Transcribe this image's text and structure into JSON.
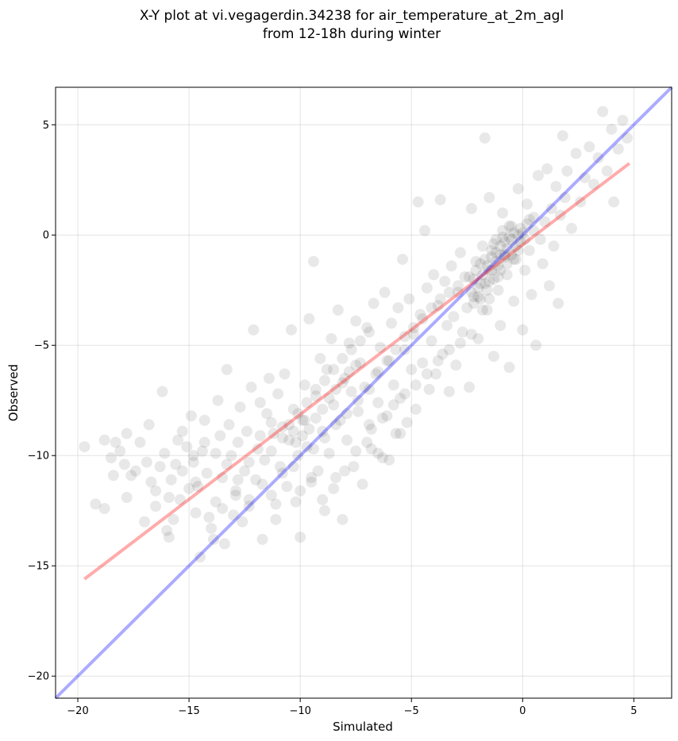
{
  "chart_data": {
    "type": "scatter",
    "title_lines": [
      "X-Y plot at vi.vegagerdin.34238 for air_temperature_at_2m_agl",
      "from 12-18h during winter"
    ],
    "xlabel": "Simulated",
    "ylabel": "Observed",
    "xlim": [
      -21.0,
      6.7
    ],
    "ylim": [
      -21.0,
      6.7
    ],
    "xticks": [
      -20,
      -15,
      -10,
      -5,
      0,
      5
    ],
    "yticks": [
      -20,
      -15,
      -10,
      -5,
      0,
      5
    ],
    "xtick_labels": [
      "−20",
      "−15",
      "−10",
      "−5",
      "0",
      "5"
    ],
    "ytick_labels": [
      "−20",
      "−15",
      "−10",
      "−5",
      "0",
      "5"
    ],
    "grid": true,
    "point_color": "#000000",
    "point_opacity": 0.09,
    "identity_line": {
      "color": "#0000ff",
      "opacity": 0.33,
      "x": [
        -21.0,
        6.7
      ],
      "y": [
        -21.0,
        6.7
      ]
    },
    "regression_line": {
      "color": "#ff0000",
      "opacity": 0.33,
      "x": [
        -19.7,
        4.8
      ],
      "y": [
        -15.6,
        3.25
      ]
    },
    "points": [
      [
        -19.7,
        -9.6
      ],
      [
        -19.2,
        -12.2
      ],
      [
        -18.8,
        -12.4
      ],
      [
        -18.8,
        -9.3
      ],
      [
        -18.5,
        -10.1
      ],
      [
        -18.4,
        -10.9
      ],
      [
        -18.3,
        -9.4
      ],
      [
        -18.1,
        -9.8
      ],
      [
        -17.9,
        -10.4
      ],
      [
        -17.8,
        -11.9
      ],
      [
        -17.8,
        -9.0
      ],
      [
        -17.6,
        -10.9
      ],
      [
        -17.4,
        -10.7
      ],
      [
        -17.2,
        -9.4
      ],
      [
        -17.0,
        -13.0
      ],
      [
        -16.9,
        -10.3
      ],
      [
        -16.8,
        -8.6
      ],
      [
        -16.7,
        -11.2
      ],
      [
        -16.5,
        -12.3
      ],
      [
        -16.3,
        -10.5
      ],
      [
        -16.2,
        -7.1
      ],
      [
        -16.1,
        -9.9
      ],
      [
        -16.0,
        -13.4
      ],
      [
        -15.9,
        -13.7
      ],
      [
        -15.8,
        -11.1
      ],
      [
        -15.7,
        -12.9
      ],
      [
        -15.6,
        -10.4
      ],
      [
        -15.5,
        -9.3
      ],
      [
        -15.4,
        -12.0
      ],
      [
        -15.3,
        -8.9
      ],
      [
        -15.1,
        -9.6
      ],
      [
        -15.0,
        -11.5
      ],
      [
        -14.9,
        -8.2
      ],
      [
        -14.8,
        -10.3
      ],
      [
        -14.7,
        -12.6
      ],
      [
        -14.6,
        -11.4
      ],
      [
        -14.5,
        -14.6
      ],
      [
        -14.4,
        -9.8
      ],
      [
        -14.3,
        -8.4
      ],
      [
        -14.2,
        -10.8
      ],
      [
        -14.0,
        -13.3
      ],
      [
        -13.9,
        -13.8
      ],
      [
        -13.8,
        -12.1
      ],
      [
        -13.7,
        -7.5
      ],
      [
        -13.6,
        -9.1
      ],
      [
        -13.5,
        -11.0
      ],
      [
        -13.4,
        -14.0
      ],
      [
        -13.3,
        -6.1
      ],
      [
        -13.2,
        -8.6
      ],
      [
        -13.1,
        -10.0
      ],
      [
        -13.0,
        -12.7
      ],
      [
        -12.9,
        -11.6
      ],
      [
        -12.8,
        -9.4
      ],
      [
        -12.7,
        -7.8
      ],
      [
        -12.6,
        -13.0
      ],
      [
        -12.5,
        -10.7
      ],
      [
        -12.4,
        -8.9
      ],
      [
        -12.3,
        -12.3
      ],
      [
        -12.2,
        -6.9
      ],
      [
        -12.1,
        -4.3
      ],
      [
        -12.0,
        -11.1
      ],
      [
        -11.9,
        -9.7
      ],
      [
        -11.8,
        -7.6
      ],
      [
        -11.7,
        -13.8
      ],
      [
        -11.6,
        -10.2
      ],
      [
        -11.5,
        -8.1
      ],
      [
        -11.4,
        -6.5
      ],
      [
        -11.3,
        -11.8
      ],
      [
        -11.2,
        -9.0
      ],
      [
        -11.1,
        -12.9
      ],
      [
        -11.0,
        -7.2
      ],
      [
        -10.9,
        -10.5
      ],
      [
        -10.8,
        -8.7
      ],
      [
        -10.7,
        -6.3
      ],
      [
        -10.6,
        -11.4
      ],
      [
        -10.5,
        -9.3
      ],
      [
        -10.4,
        -4.3
      ],
      [
        -10.3,
        -7.9
      ],
      [
        -10.2,
        -12.1
      ],
      [
        -10.1,
        -10.0
      ],
      [
        -10.0,
        -13.7
      ],
      [
        -9.9,
        -8.4
      ],
      [
        -9.8,
        -6.8
      ],
      [
        -9.7,
        -9.6
      ],
      [
        -9.6,
        -3.8
      ],
      [
        -9.5,
        -11.2
      ],
      [
        -9.4,
        -1.2
      ],
      [
        -9.3,
        -7.3
      ],
      [
        -9.2,
        -10.7
      ],
      [
        -9.1,
        -5.6
      ],
      [
        -9.0,
        -8.9
      ],
      [
        -8.9,
        -12.5
      ],
      [
        -8.8,
        -6.1
      ],
      [
        -8.7,
        -9.9
      ],
      [
        -8.6,
        -4.7
      ],
      [
        -8.5,
        -7.7
      ],
      [
        -8.4,
        -11.0
      ],
      [
        -8.3,
        -3.4
      ],
      [
        -8.2,
        -8.4
      ],
      [
        -8.1,
        -12.9
      ],
      [
        -8.0,
        -6.5
      ],
      [
        -7.9,
        -9.3
      ],
      [
        -7.8,
        -4.9
      ],
      [
        -7.7,
        -7.1
      ],
      [
        -7.6,
        -10.5
      ],
      [
        -7.5,
        -3.9
      ],
      [
        -7.4,
        -8.0
      ],
      [
        -7.3,
        -5.8
      ],
      [
        -7.2,
        -11.3
      ],
      [
        -7.1,
        -6.9
      ],
      [
        -7.0,
        -4.2
      ],
      [
        -6.9,
        -8.6
      ],
      [
        -6.8,
        -9.7
      ],
      [
        -6.7,
        -3.1
      ],
      [
        -6.6,
        -6.3
      ],
      [
        -6.5,
        -7.6
      ],
      [
        -6.4,
        -5.1
      ],
      [
        -6.3,
        -10.1
      ],
      [
        -6.2,
        -2.6
      ],
      [
        -6.1,
        -8.2
      ],
      [
        -6.0,
        -5.7
      ],
      [
        -5.9,
        -4.0
      ],
      [
        -5.8,
        -6.8
      ],
      [
        -5.7,
        -9.0
      ],
      [
        -5.6,
        -3.3
      ],
      [
        -5.5,
        -7.4
      ],
      [
        -5.4,
        -1.1
      ],
      [
        -5.3,
        -5.2
      ],
      [
        -5.2,
        -8.5
      ],
      [
        -5.1,
        -2.9
      ],
      [
        -5.0,
        -6.1
      ],
      [
        -4.9,
        -4.5
      ],
      [
        -4.8,
        -7.9
      ],
      [
        -4.7,
        1.5
      ],
      [
        -4.6,
        -3.6
      ],
      [
        -4.5,
        -5.8
      ],
      [
        -4.4,
        0.2
      ],
      [
        -4.3,
        -2.4
      ],
      [
        -4.2,
        -7.0
      ],
      [
        -4.1,
        -4.8
      ],
      [
        -4.0,
        -1.8
      ],
      [
        -3.9,
        -6.3
      ],
      [
        -3.8,
        -3.2
      ],
      [
        -3.7,
        1.6
      ],
      [
        -3.6,
        -5.4
      ],
      [
        -3.5,
        -2.1
      ],
      [
        -3.4,
        -4.1
      ],
      [
        -3.3,
        -7.1
      ],
      [
        -3.2,
        -1.4
      ],
      [
        -3.1,
        -3.7
      ],
      [
        -3.0,
        -5.9
      ],
      [
        -2.9,
        -2.6
      ],
      [
        -2.8,
        -0.8
      ],
      [
        -2.7,
        -4.4
      ],
      [
        -2.6,
        -1.9
      ],
      [
        -2.5,
        -3.3
      ],
      [
        -2.4,
        -6.9
      ],
      [
        -2.3,
        1.2
      ],
      [
        -2.2,
        -2.8
      ],
      [
        -2.1,
        -1.2
      ],
      [
        -2.0,
        -4.7
      ],
      [
        -1.9,
        -2.2
      ],
      [
        -1.8,
        -0.5
      ],
      [
        -1.7,
        4.4
      ],
      [
        -1.6,
        -3.4
      ],
      [
        -1.5,
        1.7
      ],
      [
        -1.4,
        -1.6
      ],
      [
        -1.3,
        -5.5
      ],
      [
        -1.2,
        -0.2
      ],
      [
        -1.1,
        -2.5
      ],
      [
        -1.0,
        -4.1
      ],
      [
        -0.9,
        1.0
      ],
      [
        -0.8,
        -0.9
      ],
      [
        -0.7,
        -1.8
      ],
      [
        -0.6,
        -6.0
      ],
      [
        -0.5,
        0.4
      ],
      [
        -0.4,
        -3.0
      ],
      [
        -0.3,
        -1.1
      ],
      [
        -0.2,
        2.1
      ],
      [
        -0.1,
        -0.3
      ],
      [
        0.0,
        -4.3
      ],
      [
        0.1,
        -1.6
      ],
      [
        0.2,
        1.4
      ],
      [
        0.3,
        -0.7
      ],
      [
        0.4,
        -2.7
      ],
      [
        0.5,
        0.8
      ],
      [
        0.6,
        -5.0
      ],
      [
        0.7,
        2.7
      ],
      [
        0.8,
        -0.2
      ],
      [
        0.9,
        -1.3
      ],
      [
        1.0,
        0.6
      ],
      [
        1.1,
        3.0
      ],
      [
        1.2,
        -2.3
      ],
      [
        1.3,
        1.2
      ],
      [
        1.4,
        -0.5
      ],
      [
        1.5,
        2.2
      ],
      [
        1.6,
        -3.1
      ],
      [
        1.7,
        0.9
      ],
      [
        1.8,
        4.5
      ],
      [
        1.9,
        1.7
      ],
      [
        2.0,
        2.9
      ],
      [
        2.2,
        0.3
      ],
      [
        2.4,
        3.7
      ],
      [
        2.6,
        1.5
      ],
      [
        2.8,
        2.6
      ],
      [
        3.0,
        4.0
      ],
      [
        3.2,
        2.3
      ],
      [
        3.4,
        3.5
      ],
      [
        3.6,
        5.6
      ],
      [
        3.8,
        2.9
      ],
      [
        4.0,
        4.8
      ],
      [
        4.1,
        1.5
      ],
      [
        4.3,
        3.9
      ],
      [
        4.5,
        5.2
      ],
      [
        4.7,
        4.4
      ],
      [
        -2.2,
        -2.0
      ],
      [
        -2.0,
        -2.4
      ],
      [
        -1.8,
        -1.8
      ],
      [
        -1.6,
        -1.4
      ],
      [
        -1.4,
        -1.0
      ],
      [
        -1.2,
        -0.8
      ],
      [
        -1.0,
        -0.5
      ],
      [
        -0.8,
        -0.3
      ],
      [
        -0.6,
        -0.1
      ],
      [
        -0.4,
        0.1
      ],
      [
        -2.3,
        -2.6
      ],
      [
        -2.1,
        -1.6
      ],
      [
        -1.9,
        -2.9
      ],
      [
        -1.7,
        -1.1
      ],
      [
        -1.5,
        -2.1
      ],
      [
        -1.3,
        -0.4
      ],
      [
        -1.1,
        -1.4
      ],
      [
        -0.9,
        0.2
      ],
      [
        -0.7,
        -0.6
      ],
      [
        -0.5,
        -0.9
      ],
      [
        -2.4,
        -1.9
      ],
      [
        -2.2,
        -3.1
      ],
      [
        -1.9,
        -1.3
      ],
      [
        -1.6,
        -2.5
      ],
      [
        -1.4,
        -0.7
      ],
      [
        -1.1,
        -1.9
      ],
      [
        -0.9,
        -0.1
      ],
      [
        -0.6,
        0.4
      ],
      [
        -0.3,
        -0.5
      ],
      [
        -0.1,
        0.3
      ],
      [
        -2.0,
        -2.8
      ],
      [
        -1.7,
        -2.2
      ],
      [
        -1.5,
        -1.6
      ],
      [
        -1.2,
        -1.2
      ],
      [
        -1.0,
        -0.9
      ],
      [
        -0.8,
        -1.0
      ],
      [
        -0.5,
        -0.2
      ],
      [
        -0.2,
        -0.7
      ],
      [
        0.0,
        0.1
      ],
      [
        0.2,
        0.5
      ],
      [
        -1.8,
        -3.4
      ],
      [
        -1.5,
        -2.9
      ],
      [
        -1.3,
        -2.0
      ],
      [
        -1.0,
        -1.6
      ],
      [
        -0.7,
        -1.3
      ],
      [
        -0.4,
        -1.1
      ],
      [
        -0.2,
        0.0
      ],
      [
        0.1,
        -0.2
      ],
      [
        0.3,
        0.7
      ],
      [
        0.5,
        0.2
      ],
      [
        -10.2,
        -9.4
      ],
      [
        -9.9,
        -9.1
      ],
      [
        -9.6,
        -8.8
      ],
      [
        -9.3,
        -8.3
      ],
      [
        -9.0,
        -7.9
      ],
      [
        -8.7,
        -7.4
      ],
      [
        -8.4,
        -7.0
      ],
      [
        -8.1,
        -6.7
      ],
      [
        -7.8,
        -6.2
      ],
      [
        -7.5,
        -5.9
      ],
      [
        -10.5,
        -8.6
      ],
      [
        -10.1,
        -8.1
      ],
      [
        -9.7,
        -7.6
      ],
      [
        -9.3,
        -7.0
      ],
      [
        -8.9,
        -6.6
      ],
      [
        -8.5,
        -6.1
      ],
      [
        -8.1,
        -5.6
      ],
      [
        -7.7,
        -5.2
      ],
      [
        -7.3,
        -4.8
      ],
      [
        -6.9,
        -4.4
      ],
      [
        -11.3,
        -9.8
      ],
      [
        -10.8,
        -9.2
      ],
      [
        -10.3,
        -8.9
      ],
      [
        -9.8,
        -8.4
      ],
      [
        -9.4,
        -9.7
      ],
      [
        -8.9,
        -9.2
      ],
      [
        -8.4,
        -8.6
      ],
      [
        -7.9,
        -8.1
      ],
      [
        -7.4,
        -7.5
      ],
      [
        -6.9,
        -7.0
      ],
      [
        -6.5,
        -6.2
      ],
      [
        -6.1,
        -5.7
      ],
      [
        -5.7,
        -5.2
      ],
      [
        -5.3,
        -4.6
      ],
      [
        -4.9,
        -4.2
      ],
      [
        -4.5,
        -3.8
      ],
      [
        -4.1,
        -3.3
      ],
      [
        -3.7,
        -2.9
      ],
      [
        -3.3,
        -2.6
      ],
      [
        -2.9,
        -2.3
      ],
      [
        -14.8,
        -10.0
      ],
      [
        -14.3,
        -9.4
      ],
      [
        -13.8,
        -9.9
      ],
      [
        -13.3,
        -10.4
      ],
      [
        -12.8,
        -11.1
      ],
      [
        -12.3,
        -10.3
      ],
      [
        -11.8,
        -9.1
      ],
      [
        -11.3,
        -8.5
      ],
      [
        -10.8,
        -10.8
      ],
      [
        -10.3,
        -10.5
      ],
      [
        -16.5,
        -11.6
      ],
      [
        -15.9,
        -11.9
      ],
      [
        -15.3,
        -10.7
      ],
      [
        -14.7,
        -11.2
      ],
      [
        -14.1,
        -12.8
      ],
      [
        -13.5,
        -12.4
      ],
      [
        -12.9,
        -11.8
      ],
      [
        -12.3,
        -12.0
      ],
      [
        -11.7,
        -11.3
      ],
      [
        -11.1,
        -12.2
      ],
      [
        -6.8,
        -8.8
      ],
      [
        -6.3,
        -8.3
      ],
      [
        -5.8,
        -7.7
      ],
      [
        -5.3,
        -7.2
      ],
      [
        -4.8,
        -6.8
      ],
      [
        -4.3,
        -6.3
      ],
      [
        -3.8,
        -5.7
      ],
      [
        -3.3,
        -5.2
      ],
      [
        -2.8,
        -4.9
      ],
      [
        -2.3,
        -4.5
      ],
      [
        -7.5,
        -9.8
      ],
      [
        -7.0,
        -9.4
      ],
      [
        -6.5,
        -9.9
      ],
      [
        -6.0,
        -10.2
      ],
      [
        -5.5,
        -9.0
      ],
      [
        -8.0,
        -10.7
      ],
      [
        -8.5,
        -11.5
      ],
      [
        -9.0,
        -12.0
      ],
      [
        -9.5,
        -11.0
      ],
      [
        -10.0,
        -11.6
      ]
    ]
  }
}
